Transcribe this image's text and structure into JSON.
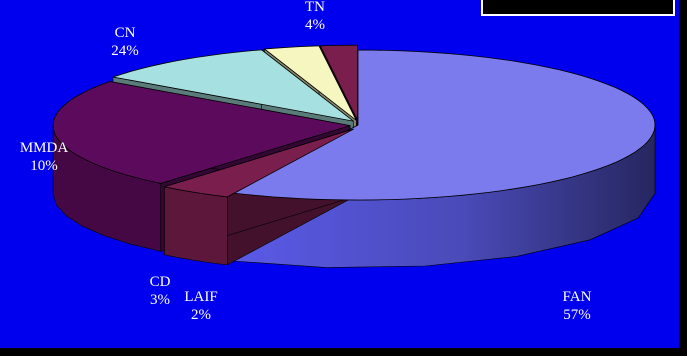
{
  "chart_data": {
    "type": "pie",
    "style": "3d-exploded",
    "slices": [
      {
        "label": "FAN",
        "value": 57,
        "display": "57%",
        "color": "#7b7bee"
      },
      {
        "label": "TN",
        "value": 4,
        "display": "4%",
        "color": "#7a1e4e"
      },
      {
        "label": "CN",
        "value": 24,
        "display": "24%",
        "color": "#5c0a5c"
      },
      {
        "label": "MMDA",
        "value": 10,
        "display": "10%",
        "color": "#a6e0e0"
      },
      {
        "label": "CD",
        "value": 3,
        "display": "3%",
        "color": "#f6f6c0"
      },
      {
        "label": "LAIF",
        "value": 2,
        "display": "2%",
        "color": "#7a1e4e"
      }
    ],
    "legend": "top-right (empty)",
    "background": "#0000ee"
  }
}
